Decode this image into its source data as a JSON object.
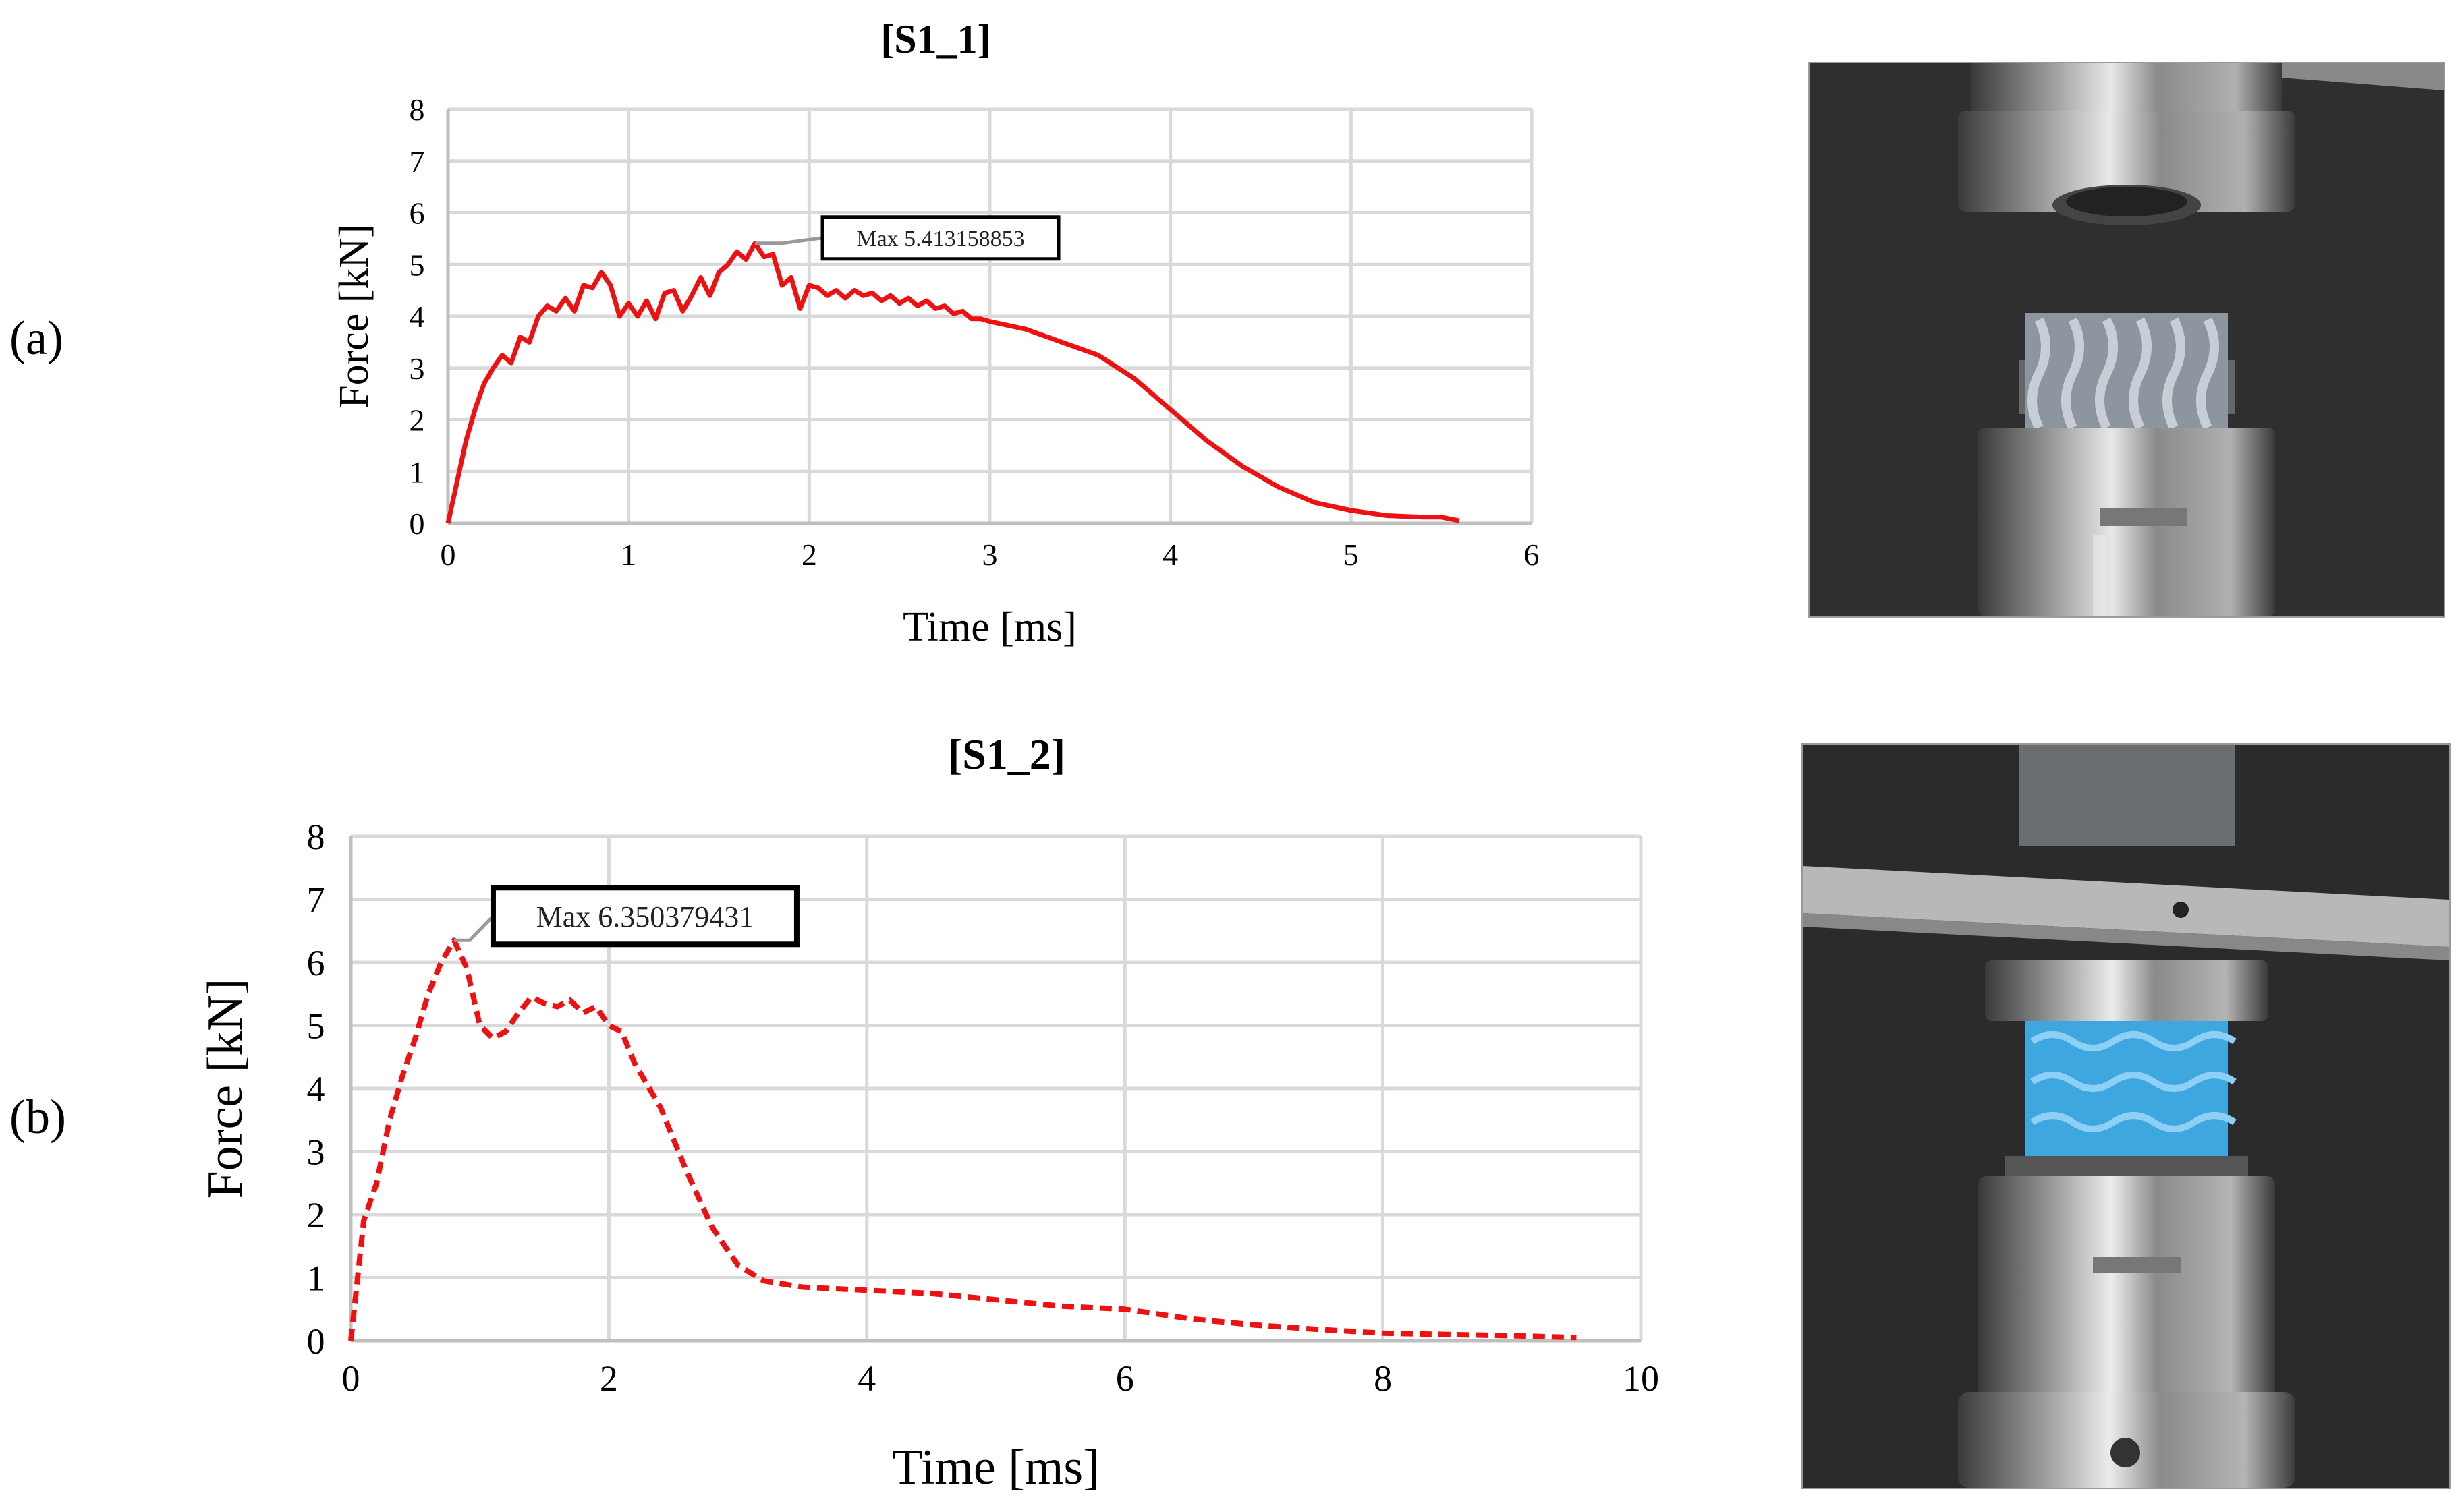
{
  "panels": {
    "a": {
      "label": "(a)"
    },
    "b": {
      "label": "(b)"
    }
  },
  "chart_data": [
    {
      "id": "S1_1",
      "type": "line",
      "title": "[S1_1]",
      "xlabel": "Time [ms]",
      "ylabel": "Force [kN]",
      "xlim": [
        0,
        6
      ],
      "ylim": [
        0,
        8
      ],
      "xticks": [
        0,
        1,
        2,
        3,
        4,
        5,
        6
      ],
      "yticks": [
        0,
        1,
        2,
        3,
        4,
        5,
        6,
        7,
        8
      ],
      "grid": true,
      "line_style": "solid",
      "color": "#ee1111",
      "annotation": {
        "text": "Max 5.413158853",
        "x": 1.7,
        "y": 5.41
      },
      "series": [
        {
          "x": [
            0,
            0.05,
            0.1,
            0.15,
            0.2,
            0.25,
            0.3,
            0.35,
            0.4,
            0.45,
            0.5,
            0.55,
            0.6,
            0.65,
            0.7,
            0.75,
            0.8,
            0.85,
            0.9,
            0.95,
            1.0,
            1.05,
            1.1,
            1.15,
            1.2,
            1.25,
            1.3,
            1.35,
            1.4,
            1.45,
            1.5,
            1.55,
            1.6,
            1.65,
            1.7,
            1.75,
            1.8,
            1.85,
            1.9,
            1.95,
            2.0,
            2.05,
            2.1,
            2.15,
            2.2,
            2.25,
            2.3,
            2.35,
            2.4,
            2.45,
            2.5,
            2.55,
            2.6,
            2.65,
            2.7,
            2.75,
            2.8,
            2.85,
            2.9,
            2.95,
            3.0,
            3.2,
            3.4,
            3.6,
            3.8,
            4.0,
            4.2,
            4.4,
            4.6,
            4.8,
            5.0,
            5.2,
            5.4,
            5.5,
            5.6
          ],
          "y": [
            0,
            0.8,
            1.6,
            2.2,
            2.7,
            3.0,
            3.25,
            3.1,
            3.6,
            3.5,
            4.0,
            4.2,
            4.1,
            4.35,
            4.1,
            4.6,
            4.55,
            4.85,
            4.6,
            4.0,
            4.25,
            4.0,
            4.3,
            3.95,
            4.45,
            4.5,
            4.1,
            4.4,
            4.75,
            4.4,
            4.85,
            5.0,
            5.25,
            5.1,
            5.41,
            5.15,
            5.2,
            4.6,
            4.75,
            4.15,
            4.6,
            4.55,
            4.4,
            4.5,
            4.35,
            4.5,
            4.4,
            4.45,
            4.3,
            4.4,
            4.25,
            4.35,
            4.2,
            4.3,
            4.15,
            4.2,
            4.05,
            4.1,
            3.95,
            3.95,
            3.9,
            3.75,
            3.5,
            3.25,
            2.8,
            2.2,
            1.6,
            1.1,
            0.7,
            0.4,
            0.25,
            0.15,
            0.12,
            0.12,
            0.05
          ]
        }
      ]
    },
    {
      "id": "S1_2",
      "type": "line",
      "title": "[S1_2]",
      "xlabel": "Time [ms]",
      "ylabel": "Force [kN]",
      "xlim": [
        0,
        10
      ],
      "ylim": [
        0,
        8
      ],
      "xticks": [
        0,
        2,
        4,
        6,
        8,
        10
      ],
      "yticks": [
        0,
        1,
        2,
        3,
        4,
        5,
        6,
        7,
        8
      ],
      "grid": true,
      "line_style": "dashed",
      "color": "#ee1111",
      "annotation": {
        "text": "Max 6.350379431",
        "x": 0.8,
        "y": 6.35
      },
      "series": [
        {
          "x": [
            0,
            0.1,
            0.2,
            0.3,
            0.4,
            0.5,
            0.6,
            0.7,
            0.8,
            0.9,
            1.0,
            1.1,
            1.2,
            1.3,
            1.4,
            1.5,
            1.6,
            1.7,
            1.8,
            1.9,
            2.0,
            2.1,
            2.2,
            2.4,
            2.6,
            2.8,
            3.0,
            3.2,
            3.5,
            4.0,
            4.5,
            5.0,
            5.5,
            6.0,
            6.5,
            7.0,
            7.5,
            8.0,
            8.5,
            9.0,
            9.5
          ],
          "y": [
            0,
            1.9,
            2.5,
            3.5,
            4.2,
            4.8,
            5.5,
            6.0,
            6.35,
            5.9,
            5.0,
            4.8,
            4.9,
            5.2,
            5.45,
            5.35,
            5.3,
            5.4,
            5.2,
            5.3,
            5.0,
            4.9,
            4.4,
            3.7,
            2.7,
            1.8,
            1.2,
            0.95,
            0.85,
            0.8,
            0.75,
            0.65,
            0.55,
            0.5,
            0.35,
            0.25,
            0.18,
            0.12,
            0.1,
            0.08,
            0.05
          ]
        }
      ]
    }
  ]
}
